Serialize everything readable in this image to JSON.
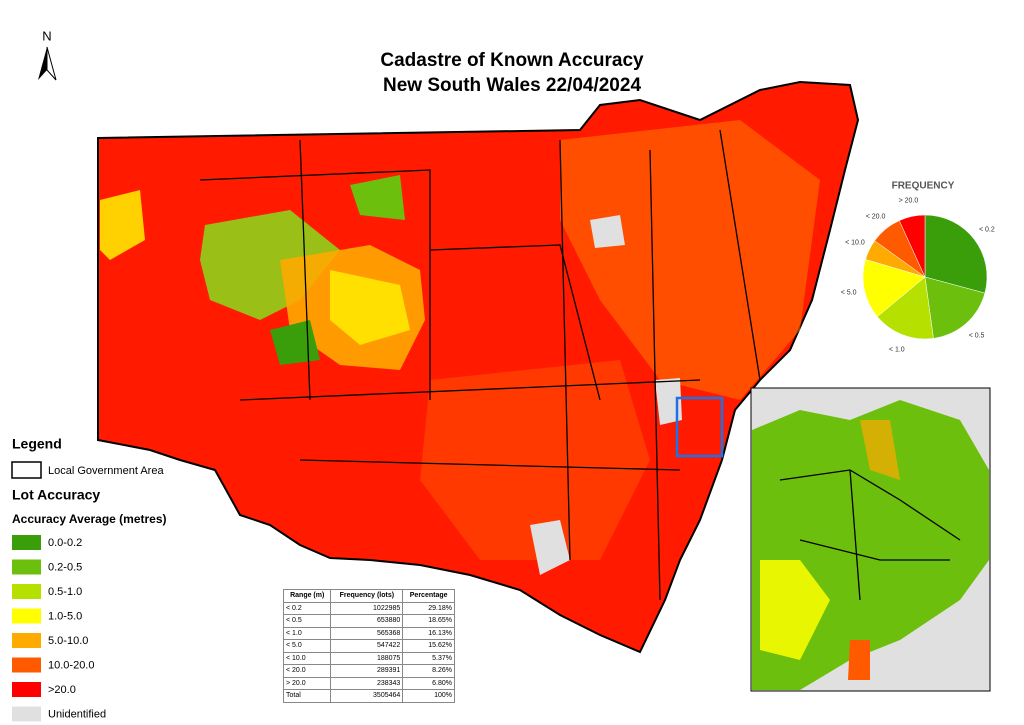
{
  "north": "N",
  "title": {
    "line1": "Cadastre of Known Accuracy",
    "line2": "New South Wales 22/04/2024"
  },
  "legend": {
    "title": "Legend",
    "lga": "Local Government Area",
    "lot_title": "Lot Accuracy",
    "subtitle": "Accuracy Average (metres)",
    "items": [
      {
        "label": "0.0-0.2",
        "color": "#3a9e0b"
      },
      {
        "label": "0.2-0.5",
        "color": "#6cbf0c"
      },
      {
        "label": "0.5-1.0",
        "color": "#b6e000"
      },
      {
        "label": "1.0-5.0",
        "color": "#ffff00"
      },
      {
        "label": "5.0-10.0",
        "color": "#ffaa00"
      },
      {
        "label": "10.0-20.0",
        "color": "#ff5a00"
      },
      {
        "label": ">20.0",
        "color": "#ff0000"
      },
      {
        "label": "Unidentified",
        "color": "#e0e0e0"
      }
    ]
  },
  "chart_data": {
    "type": "pie",
    "title": "FREQUENCY",
    "categories": [
      "< 0.2",
      "< 0.5",
      "< 1.0",
      "< 5.0",
      "< 10.0",
      "< 20.0",
      "> 20.0"
    ],
    "values": [
      29.18,
      18.65,
      16.13,
      15.62,
      5.37,
      8.26,
      6.8
    ],
    "colors": [
      "#3a9e0b",
      "#6cbf0c",
      "#b6e000",
      "#ffff00",
      "#ffaa00",
      "#ff5a00",
      "#ff0000"
    ]
  },
  "table": {
    "header": [
      "Range (m)",
      "Frequency (lots)",
      "Percentage"
    ],
    "rows": [
      [
        "< 0.2",
        "1022985",
        "29.18%"
      ],
      [
        "< 0.5",
        "653880",
        "18.65%"
      ],
      [
        "< 1.0",
        "565368",
        "16.13%"
      ],
      [
        "< 5.0",
        "547422",
        "15.62%"
      ],
      [
        "< 10.0",
        "188075",
        "5.37%"
      ],
      [
        "< 20.0",
        "289391",
        "8.26%"
      ],
      [
        "> 20.0",
        "238343",
        "6.80%"
      ],
      [
        "Total",
        "3505464",
        "100%"
      ]
    ]
  }
}
